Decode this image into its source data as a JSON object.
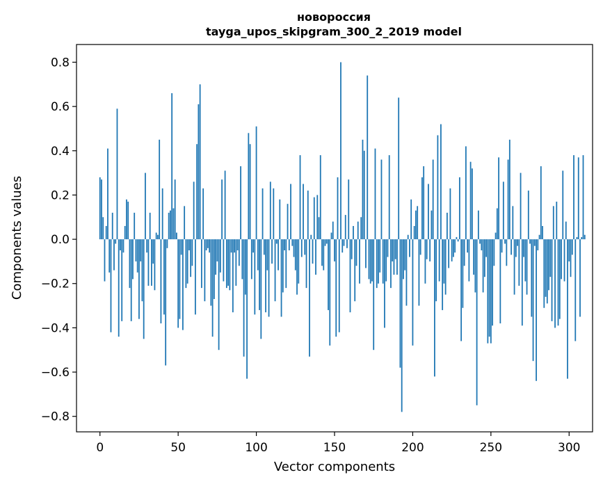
{
  "chart_data": {
    "type": "bar",
    "title": "новороссия",
    "subtitle": "tayga_upos_skipgram_300_2_2019 model",
    "xlabel": "Vector components",
    "ylabel": "Components values",
    "xlim": [
      -15,
      315
    ],
    "ylim": [
      -0.87,
      0.88
    ],
    "xticks": [
      0,
      50,
      100,
      150,
      200,
      250,
      300
    ],
    "yticks": [
      -0.8,
      -0.6,
      -0.4,
      -0.2,
      0.0,
      0.2,
      0.4,
      0.6,
      0.8
    ],
    "xtick_labels": [
      "0",
      "50",
      "100",
      "150",
      "200",
      "250",
      "300"
    ],
    "ytick_labels": [
      "−0.8",
      "−0.6",
      "−0.4",
      "−0.2",
      "0.0",
      "0.2",
      "0.4",
      "0.6",
      "0.8"
    ],
    "bar_color": "#1f77b4",
    "grid": false,
    "values": [
      0.28,
      0.27,
      0.1,
      -0.19,
      0.06,
      0.41,
      -0.15,
      -0.42,
      0.12,
      -0.14,
      -0.02,
      0.59,
      -0.44,
      -0.05,
      -0.37,
      -0.06,
      0.06,
      0.18,
      0.17,
      -0.22,
      -0.37,
      -0.18,
      0.12,
      -0.1,
      -0.15,
      -0.36,
      -0.1,
      -0.28,
      -0.45,
      0.3,
      -0.06,
      -0.21,
      0.12,
      -0.21,
      -0.11,
      -0.23,
      0.03,
      0.02,
      0.45,
      -0.38,
      0.23,
      -0.34,
      -0.57,
      -0.04,
      0.12,
      0.13,
      0.66,
      0.14,
      0.27,
      0.03,
      -0.4,
      -0.36,
      -0.07,
      -0.41,
      0.15,
      -0.22,
      -0.2,
      -0.05,
      -0.17,
      -0.12,
      0.26,
      -0.34,
      0.43,
      0.61,
      0.7,
      -0.22,
      0.23,
      -0.28,
      -0.05,
      -0.04,
      -0.06,
      -0.3,
      -0.44,
      -0.27,
      -0.16,
      -0.1,
      -0.5,
      -0.15,
      0.27,
      -0.19,
      0.31,
      -0.22,
      -0.21,
      -0.23,
      -0.06,
      -0.33,
      -0.06,
      -0.21,
      -0.05,
      -0.12,
      0.33,
      -0.18,
      -0.53,
      -0.25,
      -0.63,
      0.48,
      0.43,
      -0.18,
      -0.06,
      -0.34,
      0.51,
      -0.14,
      -0.32,
      -0.45,
      0.23,
      -0.07,
      -0.33,
      -0.14,
      -0.35,
      0.26,
      -0.11,
      0.23,
      -0.28,
      -0.02,
      -0.14,
      0.18,
      -0.35,
      -0.24,
      -0.05,
      -0.22,
      0.16,
      -0.05,
      0.25,
      -0.03,
      -0.08,
      -0.14,
      -0.25,
      -0.2,
      0.38,
      -0.08,
      0.25,
      -0.07,
      -0.22,
      0.22,
      -0.53,
      0.02,
      -0.11,
      0.19,
      -0.16,
      0.2,
      0.1,
      0.38,
      -0.12,
      -0.14,
      -0.03,
      -0.02,
      -0.32,
      -0.48,
      0.03,
      0.08,
      -0.1,
      -0.44,
      0.28,
      -0.42,
      0.8,
      -0.06,
      -0.03,
      0.11,
      -0.04,
      0.27,
      -0.33,
      -0.09,
      0.06,
      -0.28,
      -0.12,
      0.08,
      -0.2,
      0.1,
      0.45,
      0.4,
      -0.13,
      0.74,
      -0.18,
      -0.2,
      -0.19,
      -0.5,
      0.41,
      -0.22,
      -0.2,
      -0.15,
      0.36,
      -0.2,
      -0.4,
      -0.19,
      -0.08,
      0.38,
      -0.22,
      -0.1,
      -0.16,
      -0.09,
      -0.16,
      0.64,
      -0.58,
      -0.78,
      -0.18,
      -0.14,
      -0.3,
      0.02,
      -0.08,
      0.18,
      -0.48,
      0.06,
      0.13,
      0.15,
      -0.3,
      -0.07,
      0.28,
      0.33,
      -0.2,
      -0.09,
      0.25,
      -0.1,
      0.13,
      0.36,
      -0.62,
      -0.28,
      0.47,
      -0.19,
      0.52,
      -0.32,
      -0.2,
      -0.25,
      0.12,
      -0.13,
      0.23,
      -0.1,
      -0.08,
      -0.06,
      0.01,
      -0.01,
      0.28,
      -0.46,
      -0.31,
      -0.12,
      0.42,
      -0.06,
      -0.19,
      0.35,
      0.32,
      -0.16,
      -0.24,
      -0.75,
      0.13,
      -0.02,
      -0.05,
      -0.24,
      -0.17,
      -0.08,
      -0.47,
      -0.44,
      -0.47,
      -0.39,
      -0.12,
      0.03,
      0.14,
      0.37,
      -0.38,
      -0.06,
      0.26,
      -0.02,
      -0.12,
      0.36,
      0.45,
      -0.07,
      0.15,
      -0.25,
      -0.08,
      -0.03,
      -0.21,
      0.3,
      -0.39,
      -0.08,
      -0.19,
      -0.25,
      0.22,
      -0.02,
      -0.35,
      -0.55,
      -0.03,
      -0.64,
      -0.05,
      0.02,
      0.33,
      0.06,
      -0.31,
      -0.26,
      -0.29,
      -0.23,
      -0.17,
      -0.37,
      0.15,
      -0.4,
      0.17,
      -0.39,
      -0.36,
      -0.18,
      0.31,
      -0.19,
      0.08,
      -0.63,
      -0.1,
      -0.17,
      -0.07,
      0.38,
      -0.46,
      0.01,
      0.37,
      -0.35,
      0.01,
      0.38,
      0.02
    ]
  }
}
